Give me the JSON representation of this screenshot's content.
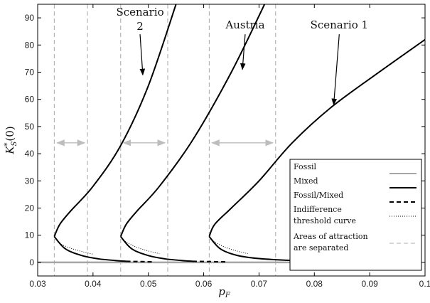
{
  "chart_data": {
    "type": "line",
    "xlabel": "p_F",
    "ylabel": "K*_S(0)",
    "xlim": [
      0.03,
      0.1
    ],
    "ylim": [
      -5,
      95
    ],
    "x_ticks": [
      "0.03",
      "0.04",
      "0.05",
      "0.06",
      "0.07",
      "0.08",
      "0.09",
      "0.1"
    ],
    "y_ticks": [
      "0",
      "10",
      "20",
      "30",
      "40",
      "50",
      "60",
      "70",
      "80",
      "90"
    ],
    "grid": false,
    "legend_placement": "bottom-right",
    "legend": [
      {
        "label": "Fossil",
        "style": "solid",
        "color": "#a6a6a6"
      },
      {
        "label": "Mixed",
        "style": "solid",
        "color": "#000000"
      },
      {
        "label": "Fossil/Mixed",
        "style": "dashed",
        "color": "#000000"
      },
      {
        "label": "Indifference threshold curve",
        "style": "dotted",
        "color": "#000000"
      },
      {
        "label": "Areas of attraction are separated",
        "style": "dashed",
        "color": "#b0b0b0"
      }
    ],
    "fossil_line": {
      "x": [
        0.03,
        0.091
      ],
      "y": [
        0,
        0
      ]
    },
    "scenarios": [
      {
        "label_lines": [
          "Scenario",
          "2"
        ],
        "x_turn": 0.033,
        "y_turn": 9.5,
        "upper": {
          "x": [
            0.033,
            0.034,
            0.036,
            0.04,
            0.045,
            0.05,
            0.055
          ],
          "y": [
            9.5,
            14,
            19,
            28,
            43,
            65,
            95
          ]
        },
        "lower": {
          "x": [
            0.033,
            0.035,
            0.038,
            0.041,
            0.044,
            0.046
          ],
          "y": [
            9.5,
            5,
            2.5,
            1.3,
            0.7,
            0.4
          ]
        },
        "dashed": {
          "x": [
            0.046,
            0.051
          ],
          "y": [
            0.4,
            0.2
          ]
        },
        "dotted": {
          "x": [
            0.033,
            0.034,
            0.036,
            0.038,
            0.04
          ],
          "y": [
            9.5,
            7,
            5.2,
            4,
            3
          ]
        },
        "vlines": [
          0.033,
          0.039
        ],
        "arrow_range": [
          0.0335,
          0.0385
        ]
      },
      {
        "label_lines": [
          "Austria"
        ],
        "x_turn": 0.045,
        "y_turn": 9.5,
        "upper": {
          "x": [
            0.045,
            0.046,
            0.048,
            0.052,
            0.058,
            0.065,
            0.071
          ],
          "y": [
            9.5,
            14,
            19,
            28,
            45,
            70,
            95
          ]
        },
        "lower": {
          "x": [
            0.045,
            0.047,
            0.05,
            0.053,
            0.056,
            0.058
          ],
          "y": [
            9.5,
            5,
            2.5,
            1.3,
            0.7,
            0.4
          ]
        },
        "dashed": {
          "x": [
            0.058,
            0.064
          ],
          "y": [
            0.4,
            0.2
          ]
        },
        "dotted": {
          "x": [
            0.045,
            0.046,
            0.048,
            0.05,
            0.052
          ],
          "y": [
            9.5,
            7.5,
            5.5,
            4.2,
            3.2
          ]
        },
        "vlines": [
          0.045,
          0.0535
        ],
        "arrow_range": [
          0.0455,
          0.053
        ]
      },
      {
        "label_lines": [
          "Scenario 1"
        ],
        "x_turn": 0.061,
        "y_turn": 9.5,
        "upper": {
          "x": [
            0.061,
            0.062,
            0.065,
            0.07,
            0.076,
            0.083,
            0.091,
            0.1
          ],
          "y": [
            9.5,
            14,
            20,
            30,
            44,
            57,
            69,
            82
          ]
        },
        "lower": {
          "x": [
            0.061,
            0.063,
            0.066,
            0.07,
            0.075,
            0.08
          ],
          "y": [
            9.5,
            5,
            2.6,
            1.4,
            0.8,
            0.5
          ]
        },
        "dashed": {
          "x": [
            0.08,
            0.091
          ],
          "y": [
            0.5,
            0.2
          ]
        },
        "dotted": {
          "x": [
            0.061,
            0.062,
            0.064,
            0.066,
            0.068
          ],
          "y": [
            9.5,
            7.5,
            5.5,
            4.2,
            3.2
          ]
        },
        "vlines": [
          0.061,
          0.073
        ],
        "arrow_range": [
          0.0615,
          0.0725
        ]
      }
    ],
    "annotation_arrows": [
      {
        "text_x": 0.0485,
        "text_y": 85,
        "tip_x": 0.049,
        "tip_y": 69
      },
      {
        "text_x": 0.0675,
        "text_y": 85,
        "tip_x": 0.067,
        "tip_y": 71
      },
      {
        "text_x": 0.0845,
        "text_y": 85,
        "tip_x": 0.0835,
        "tip_y": 58
      }
    ]
  }
}
